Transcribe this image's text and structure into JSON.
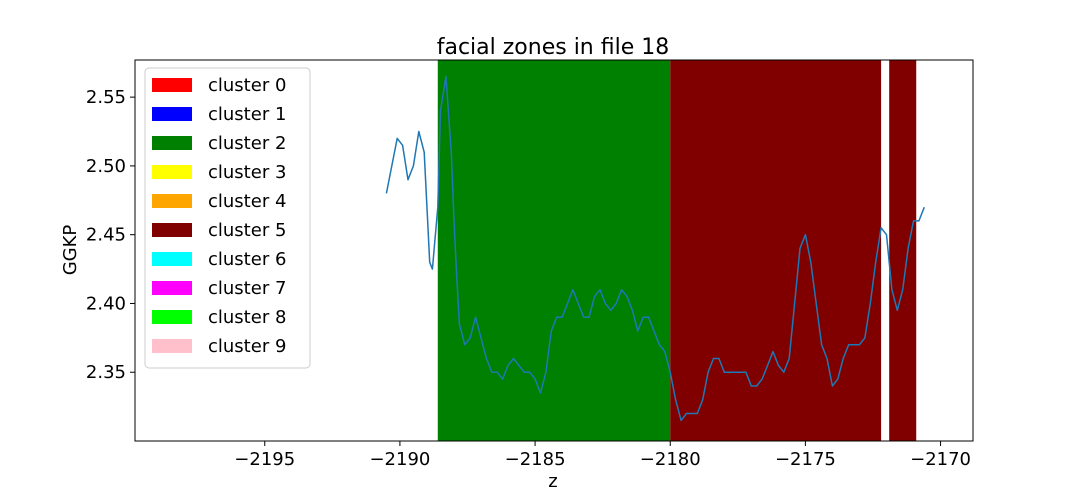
{
  "chart_data": {
    "type": "line",
    "title": "facial zones in file 18",
    "xlabel": "z",
    "ylabel": "GGKP",
    "xlim": [
      -2199.8,
      -2168.8
    ],
    "ylim": [
      2.3,
      2.577
    ],
    "xticks": [
      -2195,
      -2190,
      -2185,
      -2180,
      -2175,
      -2170
    ],
    "xtick_labels": [
      "−2195",
      "−2190",
      "−2185",
      "−2180",
      "−2175",
      "−2170"
    ],
    "yticks": [
      2.35,
      2.4,
      2.45,
      2.5,
      2.55
    ],
    "ytick_labels": [
      "2.35",
      "2.40",
      "2.45",
      "2.50",
      "2.55"
    ],
    "grid": false,
    "legend_position": "top-left",
    "legend": [
      {
        "label": "cluster 0",
        "color": "#ff0000"
      },
      {
        "label": "cluster 1",
        "color": "#0000ff"
      },
      {
        "label": "cluster 2",
        "color": "#008000"
      },
      {
        "label": "cluster 3",
        "color": "#ffff00"
      },
      {
        "label": "cluster 4",
        "color": "#ffa500"
      },
      {
        "label": "cluster 5",
        "color": "#800000"
      },
      {
        "label": "cluster 6",
        "color": "#00ffff"
      },
      {
        "label": "cluster 7",
        "color": "#ff00ff"
      },
      {
        "label": "cluster 8",
        "color": "#00ff00"
      },
      {
        "label": "cluster 9",
        "color": "#ffc0cb"
      }
    ],
    "zones": [
      {
        "cluster": 2,
        "x_start": -2188.6,
        "x_end": -2180.0,
        "color": "#008000"
      },
      {
        "cluster": 5,
        "x_start": -2180.0,
        "x_end": -2172.2,
        "color": "#800000"
      },
      {
        "cluster": 5,
        "x_start": -2171.9,
        "x_end": -2170.9,
        "color": "#800000"
      }
    ],
    "series": [
      {
        "color": "#1f77b4",
        "x": [
          -2190.5,
          -2190.3,
          -2190.1,
          -2189.9,
          -2189.7,
          -2189.5,
          -2189.3,
          -2189.1,
          -2188.9,
          -2188.8,
          -2188.6,
          -2188.5,
          -2188.3,
          -2188.1,
          -2188.0,
          -2187.9,
          -2187.8,
          -2187.6,
          -2187.4,
          -2187.2,
          -2187.0,
          -2186.8,
          -2186.6,
          -2186.4,
          -2186.2,
          -2186.0,
          -2185.8,
          -2185.6,
          -2185.4,
          -2185.2,
          -2185.0,
          -2184.8,
          -2184.6,
          -2184.4,
          -2184.2,
          -2184.0,
          -2183.8,
          -2183.6,
          -2183.4,
          -2183.2,
          -2183.0,
          -2182.8,
          -2182.6,
          -2182.4,
          -2182.2,
          -2182.0,
          -2181.8,
          -2181.6,
          -2181.4,
          -2181.2,
          -2181.0,
          -2180.8,
          -2180.6,
          -2180.4,
          -2180.2,
          -2180.0,
          -2179.8,
          -2179.6,
          -2179.4,
          -2179.2,
          -2179.0,
          -2178.8,
          -2178.6,
          -2178.4,
          -2178.2,
          -2178.0,
          -2177.8,
          -2177.6,
          -2177.4,
          -2177.2,
          -2177.0,
          -2176.8,
          -2176.6,
          -2176.4,
          -2176.2,
          -2176.0,
          -2175.8,
          -2175.6,
          -2175.4,
          -2175.2,
          -2175.0,
          -2174.8,
          -2174.6,
          -2174.4,
          -2174.2,
          -2174.0,
          -2173.8,
          -2173.6,
          -2173.4,
          -2173.2,
          -2173.0,
          -2172.8,
          -2172.6,
          -2172.4,
          -2172.2,
          -2172.0,
          -2171.8,
          -2171.6,
          -2171.4,
          -2171.2,
          -2171.0,
          -2170.8,
          -2170.6
        ],
        "y": [
          2.48,
          2.5,
          2.52,
          2.515,
          2.49,
          2.5,
          2.525,
          2.51,
          2.43,
          2.425,
          2.47,
          2.54,
          2.565,
          2.51,
          2.46,
          2.42,
          2.385,
          2.37,
          2.375,
          2.39,
          2.375,
          2.36,
          2.35,
          2.35,
          2.345,
          2.355,
          2.36,
          2.355,
          2.35,
          2.35,
          2.345,
          2.335,
          2.35,
          2.38,
          2.39,
          2.39,
          2.4,
          2.41,
          2.4,
          2.39,
          2.39,
          2.405,
          2.41,
          2.4,
          2.395,
          2.4,
          2.41,
          2.405,
          2.395,
          2.38,
          2.39,
          2.39,
          2.38,
          2.37,
          2.365,
          2.35,
          2.33,
          2.315,
          2.32,
          2.32,
          2.32,
          2.33,
          2.35,
          2.36,
          2.36,
          2.35,
          2.35,
          2.35,
          2.35,
          2.35,
          2.34,
          2.34,
          2.345,
          2.355,
          2.365,
          2.355,
          2.35,
          2.36,
          2.4,
          2.44,
          2.45,
          2.43,
          2.4,
          2.37,
          2.36,
          2.34,
          2.345,
          2.36,
          2.37,
          2.37,
          2.37,
          2.375,
          2.4,
          2.43,
          2.455,
          2.45,
          2.41,
          2.395,
          2.41,
          2.44,
          2.46,
          2.46,
          2.47
        ]
      }
    ]
  }
}
